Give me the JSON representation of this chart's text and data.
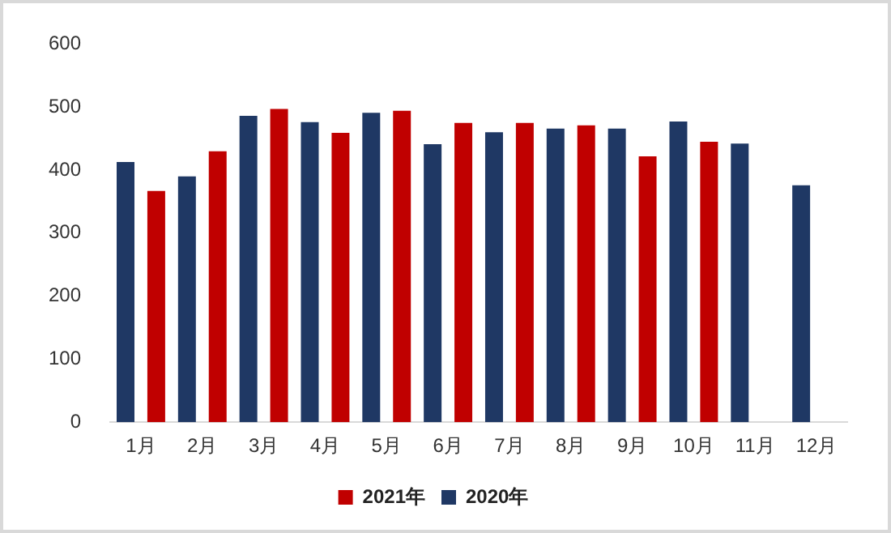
{
  "chart_data": {
    "type": "bar",
    "categories": [
      "1月",
      "2月",
      "3月",
      "4月",
      "5月",
      "6月",
      "7月",
      "8月",
      "9月",
      "10月",
      "11月",
      "12月"
    ],
    "series": [
      {
        "name": "2020年",
        "color": "#1f3864",
        "values": [
          413,
          390,
          486,
          476,
          491,
          441,
          460,
          466,
          466,
          477,
          442,
          376
        ]
      },
      {
        "name": "2021年",
        "color": "#c00000",
        "values": [
          367,
          430,
          497,
          459,
          494,
          475,
          475,
          471,
          422,
          445,
          null,
          null
        ]
      }
    ],
    "ylim": [
      0,
      600
    ],
    "yticks": [
      0,
      100,
      200,
      300,
      400,
      500,
      600
    ],
    "grid": false,
    "legend": "bottom"
  }
}
